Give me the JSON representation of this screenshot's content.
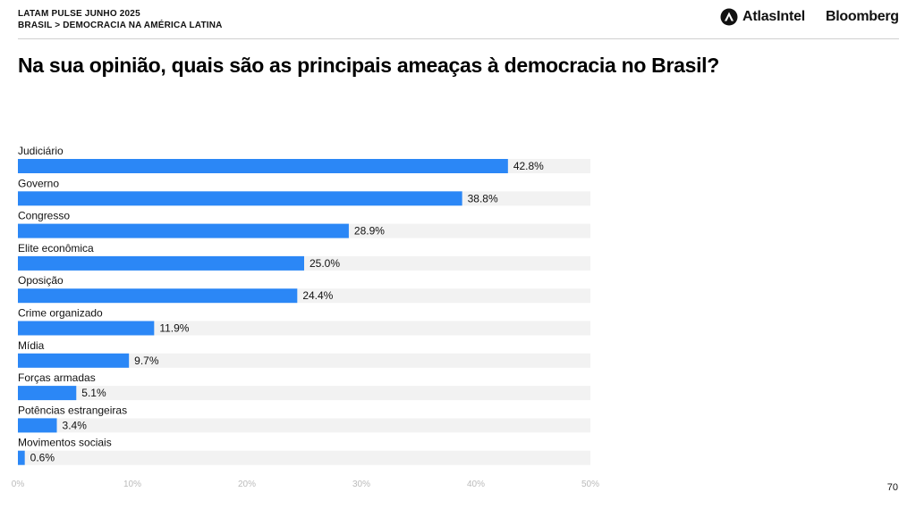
{
  "header": {
    "survey": "LATAM PULSE JUNHO 2025",
    "breadcrumb": "BRASIL > DEMOCRACIA NA AMÉRICA LATINA"
  },
  "brands": {
    "atlas": "AtlasIntel",
    "bloomberg": "Bloomberg"
  },
  "page_number": "70",
  "colors": {
    "bar": "#2b87f6",
    "track": "#f2f2f2",
    "text": "#111111"
  },
  "chart_data": {
    "type": "bar",
    "orientation": "horizontal",
    "title": "Na sua opinião, quais são as principais ameaças à democracia no Brasil?",
    "categories": [
      "Judiciário",
      "Governo",
      "Congresso",
      "Elite econômica",
      "Oposição",
      "Crime organizado",
      "Mídia",
      "Forças armadas",
      "Potências estrangeiras",
      "Movimentos sociais"
    ],
    "values": [
      42.8,
      38.8,
      28.9,
      25.0,
      24.4,
      11.9,
      9.7,
      5.1,
      3.4,
      0.6
    ],
    "value_labels": [
      "42.8%",
      "38.8%",
      "28.9%",
      "25.0%",
      "24.4%",
      "11.9%",
      "9.7%",
      "5.1%",
      "3.4%",
      "0.6%"
    ],
    "xlim": [
      0,
      50
    ],
    "x_ticks": [
      0,
      10,
      20,
      30,
      40,
      50
    ],
    "x_tick_labels": [
      "0%",
      "10%",
      "20%",
      "30%",
      "40%",
      "50%"
    ],
    "grid": false,
    "legend": "none"
  }
}
